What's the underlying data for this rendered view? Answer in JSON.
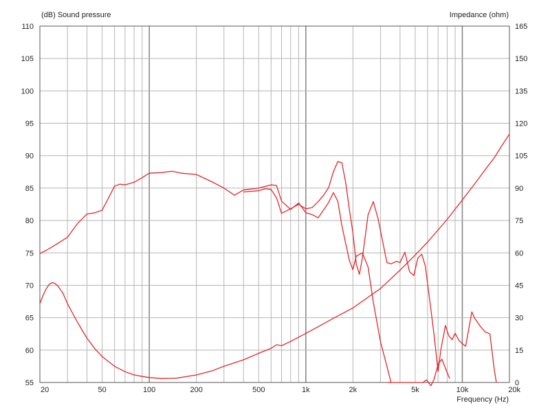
{
  "chart_data": {
    "type": "line",
    "left_axis_title": "(dB)  Sound pressure",
    "right_axis_title": "Impedance  (ohm)",
    "xlabel": "Frequency  (Hz)",
    "x_scale": "log",
    "xlim": [
      20,
      20000
    ],
    "ylim_left": [
      55,
      110
    ],
    "ylim_right": [
      0,
      165
    ],
    "grid": true,
    "line_color": "#e0262a",
    "y_ticks_left": [
      55,
      60,
      65,
      70,
      75,
      80,
      85,
      90,
      95,
      100,
      105,
      110
    ],
    "y_ticks_right": [
      0,
      15,
      30,
      45,
      60,
      75,
      90,
      105,
      120,
      135,
      150,
      165
    ],
    "x_ticks": [
      {
        "value": 20,
        "label": "20"
      },
      {
        "value": 50,
        "label": "50"
      },
      {
        "value": 100,
        "label": "100"
      },
      {
        "value": 200,
        "label": "200"
      },
      {
        "value": 500,
        "label": "500"
      },
      {
        "value": 1000,
        "label": "1k"
      },
      {
        "value": 2000,
        "label": "2k"
      },
      {
        "value": 5000,
        "label": "5k"
      },
      {
        "value": 10000,
        "label": "10k"
      },
      {
        "value": 20000,
        "label": "20k"
      }
    ],
    "series": [
      {
        "axis": "left",
        "points": [
          [
            20,
            74.9
          ],
          [
            22,
            75.4
          ],
          [
            25,
            76.2
          ],
          [
            30,
            77.4
          ],
          [
            35,
            79.6
          ],
          [
            40,
            81.0
          ],
          [
            45,
            81.2
          ],
          [
            50,
            81.6
          ],
          [
            55,
            83.5
          ],
          [
            60,
            85.3
          ],
          [
            65,
            85.6
          ],
          [
            70,
            85.5
          ],
          [
            80,
            85.9
          ],
          [
            90,
            86.6
          ],
          [
            100,
            87.3
          ],
          [
            120,
            87.4
          ],
          [
            140,
            87.6
          ],
          [
            160,
            87.3
          ],
          [
            200,
            87.1
          ],
          [
            250,
            86.0
          ],
          [
            300,
            85.0
          ],
          [
            350,
            83.9
          ],
          [
            400,
            84.7
          ],
          [
            500,
            85.0
          ],
          [
            600,
            85.5
          ],
          [
            650,
            85.4
          ],
          [
            700,
            83.0
          ],
          [
            800,
            81.7
          ],
          [
            900,
            82.7
          ],
          [
            1000,
            81.2
          ],
          [
            1100,
            80.9
          ],
          [
            1200,
            80.4
          ],
          [
            1400,
            82.8
          ],
          [
            1500,
            84.3
          ],
          [
            1600,
            83.0
          ],
          [
            1700,
            79.2
          ],
          [
            1800,
            76.4
          ],
          [
            1900,
            73.8
          ],
          [
            2000,
            72.4
          ],
          [
            2100,
            74.5
          ],
          [
            2300,
            75.0
          ],
          [
            2500,
            72.8
          ],
          [
            2700,
            67.4
          ],
          [
            3000,
            61.3
          ],
          [
            3300,
            57.5
          ],
          [
            3500,
            55.0
          ]
        ]
      },
      {
        "axis": "left",
        "points": [
          [
            3300,
            55.0
          ],
          [
            5600,
            55.0
          ],
          [
            5900,
            55.4
          ],
          [
            6300,
            54.5
          ],
          [
            6600,
            55.5
          ],
          [
            7000,
            57.8
          ],
          [
            7400,
            58.6
          ],
          [
            7800,
            57.2
          ],
          [
            8300,
            55.6
          ]
        ]
      },
      {
        "axis": "left",
        "points": [
          [
            400,
            84.4
          ],
          [
            500,
            84.6
          ],
          [
            550,
            84.9
          ],
          [
            600,
            84.8
          ],
          [
            650,
            83.5
          ],
          [
            700,
            81.1
          ],
          [
            800,
            81.8
          ],
          [
            900,
            82.5
          ],
          [
            1000,
            81.8
          ],
          [
            1100,
            82.0
          ],
          [
            1200,
            82.9
          ],
          [
            1300,
            83.9
          ],
          [
            1400,
            85.1
          ],
          [
            1500,
            87.5
          ],
          [
            1600,
            89.1
          ],
          [
            1700,
            88.9
          ],
          [
            1800,
            85.8
          ],
          [
            1900,
            81.6
          ],
          [
            2000,
            78.1
          ],
          [
            2100,
            73.3
          ],
          [
            2200,
            71.7
          ],
          [
            2300,
            74.3
          ],
          [
            2500,
            80.9
          ],
          [
            2700,
            82.9
          ],
          [
            2900,
            80.2
          ],
          [
            3100,
            76.7
          ],
          [
            3300,
            73.5
          ],
          [
            3500,
            73.3
          ],
          [
            3800,
            73.7
          ],
          [
            4000,
            73.5
          ],
          [
            4300,
            75.1
          ],
          [
            4600,
            72.1
          ],
          [
            4900,
            71.5
          ],
          [
            5200,
            74.2
          ],
          [
            5500,
            74.8
          ],
          [
            5800,
            73.0
          ],
          [
            6200,
            67.6
          ],
          [
            6600,
            62.3
          ],
          [
            7000,
            56.7
          ],
          [
            7300,
            60.1
          ],
          [
            7800,
            63.8
          ],
          [
            8200,
            62.2
          ],
          [
            8600,
            61.6
          ],
          [
            9000,
            62.6
          ],
          [
            9500,
            61.5
          ],
          [
            10000,
            61.0
          ],
          [
            10500,
            60.6
          ],
          [
            11000,
            63.3
          ],
          [
            11500,
            65.9
          ],
          [
            12000,
            64.9
          ],
          [
            13000,
            63.7
          ],
          [
            14000,
            62.8
          ],
          [
            15000,
            62.5
          ],
          [
            16000,
            57.0
          ],
          [
            16500,
            55.0
          ]
        ]
      },
      {
        "axis": "right",
        "points": [
          [
            20,
            36.5
          ],
          [
            21,
            40.5
          ],
          [
            22,
            43.5
          ],
          [
            23,
            45.5
          ],
          [
            24,
            46.3
          ],
          [
            25,
            45.8
          ],
          [
            26,
            44.8
          ],
          [
            28,
            41.5
          ],
          [
            30,
            36.5
          ],
          [
            35,
            27.5
          ],
          [
            40,
            20.5
          ],
          [
            45,
            15.5
          ],
          [
            50,
            12.0
          ],
          [
            60,
            7.5
          ],
          [
            70,
            5.0
          ],
          [
            80,
            3.5
          ],
          [
            90,
            2.8
          ],
          [
            100,
            2.3
          ],
          [
            120,
            1.8
          ],
          [
            150,
            2.0
          ],
          [
            200,
            3.5
          ],
          [
            250,
            5.3
          ],
          [
            300,
            7.5
          ],
          [
            400,
            10.5
          ],
          [
            500,
            13.5
          ],
          [
            600,
            15.8
          ],
          [
            650,
            17.5
          ],
          [
            700,
            17.0
          ],
          [
            800,
            19.0
          ],
          [
            1000,
            22.7
          ],
          [
            1200,
            25.8
          ],
          [
            1500,
            29.7
          ],
          [
            2000,
            34.5
          ],
          [
            3000,
            43.5
          ],
          [
            4000,
            52.0
          ],
          [
            5000,
            59.0
          ],
          [
            6000,
            65.0
          ],
          [
            8000,
            75.5
          ],
          [
            10000,
            84.5
          ],
          [
            12000,
            92.0
          ],
          [
            14000,
            98.5
          ],
          [
            16000,
            104.0
          ],
          [
            18000,
            110.0
          ],
          [
            20000,
            115.0
          ]
        ]
      }
    ]
  }
}
